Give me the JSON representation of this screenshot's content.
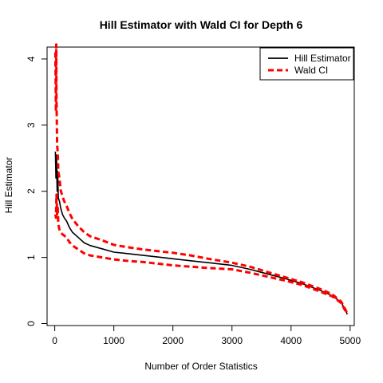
{
  "chart_data": {
    "type": "line",
    "title": "Hill Estimator with Wald CI for Depth 6",
    "xlabel": "Number of Order Statistics",
    "ylabel": "Hill Estimator",
    "xlim": [
      -130,
      5070
    ],
    "ylim": [
      -0.03,
      4.18
    ],
    "x_ticks": [
      0,
      1000,
      2000,
      3000,
      4000,
      5000
    ],
    "y_ticks": [
      0,
      1,
      2,
      3,
      4
    ],
    "x_tick_labels": [
      "0",
      "1000",
      "2000",
      "3000",
      "4000",
      "5000"
    ],
    "y_tick_labels": [
      "0",
      "1",
      "2",
      "3",
      "4"
    ],
    "grid": false,
    "legend_position": "top-right",
    "colors": {
      "estimator": "#000000",
      "ci": "#ff0000"
    },
    "series": [
      {
        "name": "Hill Estimator",
        "style": "solid",
        "x": [
          10,
          20,
          30,
          40,
          50,
          60,
          80,
          100,
          130,
          160,
          200,
          250,
          300,
          400,
          500,
          600,
          800,
          1000,
          1200,
          1500,
          1800,
          2000,
          2300,
          2600,
          3000,
          3300,
          3600,
          3900,
          4200,
          4500,
          4700,
          4850,
          4950
        ],
        "y": [
          2.6,
          2.2,
          2.55,
          2.0,
          2.3,
          1.9,
          1.85,
          1.75,
          1.65,
          1.6,
          1.55,
          1.45,
          1.38,
          1.3,
          1.22,
          1.18,
          1.13,
          1.08,
          1.06,
          1.03,
          1.0,
          0.98,
          0.95,
          0.92,
          0.88,
          0.82,
          0.75,
          0.68,
          0.6,
          0.5,
          0.42,
          0.32,
          0.15
        ]
      },
      {
        "name": "Wald CI",
        "style": "dashed",
        "x": [
          10,
          20,
          25,
          30,
          40,
          50,
          60,
          80,
          100,
          130,
          160,
          200,
          250,
          300,
          400,
          500,
          600,
          800,
          1000,
          1200,
          1500,
          1800,
          2000,
          2300,
          2600,
          3000,
          3300,
          3600,
          3900,
          4200,
          4500,
          4700,
          4850,
          4950
        ],
        "y": [
          4.1,
          3.2,
          4.22,
          3.4,
          2.7,
          2.6,
          2.3,
          2.2,
          2.02,
          1.92,
          1.85,
          1.78,
          1.67,
          1.58,
          1.47,
          1.38,
          1.32,
          1.26,
          1.19,
          1.16,
          1.12,
          1.09,
          1.07,
          1.03,
          0.98,
          0.92,
          0.86,
          0.78,
          0.7,
          0.62,
          0.52,
          0.44,
          0.33,
          0.16
        ]
      },
      {
        "name": "",
        "style": "dashed",
        "x": [
          10,
          20,
          30,
          40,
          50,
          60,
          80,
          100,
          130,
          160,
          200,
          250,
          300,
          400,
          500,
          600,
          800,
          1000,
          1200,
          1500,
          1800,
          2000,
          2300,
          2600,
          3000,
          3300,
          3600,
          3900,
          4200,
          4500,
          4700,
          4850,
          4950
        ],
        "y": [
          1.65,
          1.6,
          1.95,
          1.65,
          1.75,
          1.5,
          1.42,
          1.38,
          1.35,
          1.33,
          1.3,
          1.23,
          1.18,
          1.12,
          1.06,
          1.03,
          1.0,
          0.97,
          0.95,
          0.93,
          0.9,
          0.88,
          0.86,
          0.84,
          0.82,
          0.77,
          0.71,
          0.65,
          0.58,
          0.48,
          0.41,
          0.31,
          0.14
        ]
      }
    ]
  }
}
